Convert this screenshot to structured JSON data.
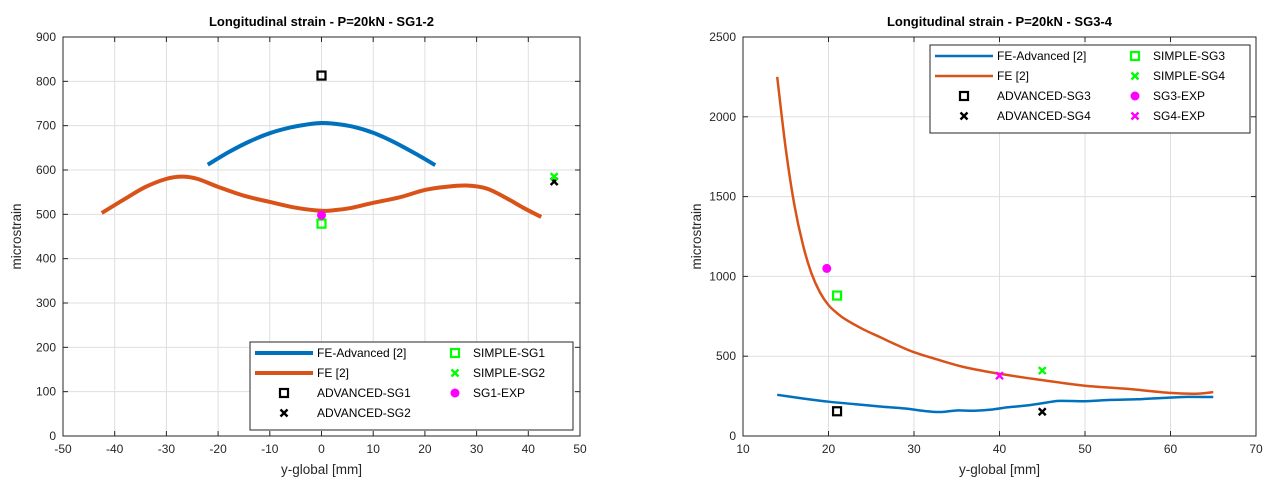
{
  "chart_data": [
    {
      "type": "line",
      "title": "Longitudinal strain - P=20kN - SG1-2",
      "xlabel": "y-global [mm]",
      "ylabel": "microstrain",
      "xlim": [
        -50,
        50
      ],
      "ylim": [
        0,
        900
      ],
      "xticks": [
        "-50",
        "-40",
        "-30",
        "-20",
        "-10",
        "0",
        "10",
        "20",
        "30",
        "40",
        "50"
      ],
      "yticks": [
        "0",
        "100",
        "200",
        "300",
        "400",
        "500",
        "600",
        "700",
        "800",
        "900"
      ],
      "grid": true,
      "legend_position": "bottom-right",
      "series": [
        {
          "name": "FE-Advanced [2]",
          "kind": "line",
          "color": "#0072BD",
          "width": 4,
          "x": [
            -22,
            -18,
            -14,
            -10,
            -6,
            -2,
            0,
            2,
            6,
            10,
            14,
            18,
            22
          ],
          "y": [
            612,
            640,
            664,
            683,
            696,
            704,
            706,
            705,
            698,
            684,
            663,
            638,
            611
          ]
        },
        {
          "name": "FE [2]",
          "kind": "line",
          "color": "#D95319",
          "width": 4,
          "x": [
            -42.5,
            -38,
            -34,
            -30,
            -27,
            -24,
            -20,
            -15,
            -10,
            -5,
            0,
            3,
            6,
            10,
            15,
            20,
            24,
            28,
            32,
            36,
            39,
            42.5
          ],
          "y": [
            503,
            535,
            562,
            580,
            585,
            580,
            562,
            542,
            528,
            515,
            508,
            510,
            515,
            526,
            538,
            555,
            562,
            565,
            558,
            535,
            515,
            494
          ]
        },
        {
          "name": "ADVANCED-SG1",
          "kind": "marker",
          "marker": "square",
          "color": "#000000",
          "x": [
            0
          ],
          "y": [
            813
          ]
        },
        {
          "name": "ADVANCED-SG2",
          "kind": "marker",
          "marker": "x",
          "color": "#000000",
          "x": [
            45
          ],
          "y": [
            574
          ]
        },
        {
          "name": "SIMPLE-SG1",
          "kind": "marker",
          "marker": "square",
          "color": "#00FF00",
          "x": [
            0
          ],
          "y": [
            479
          ]
        },
        {
          "name": "SIMPLE-SG2",
          "kind": "marker",
          "marker": "x",
          "color": "#00FF00",
          "x": [
            45
          ],
          "y": [
            585
          ]
        },
        {
          "name": "SG1-EXP",
          "kind": "marker",
          "marker": "circle",
          "color": "#FF00FF",
          "x": [
            0
          ],
          "y": [
            498
          ]
        }
      ]
    },
    {
      "type": "line",
      "title": "Longitudinal strain - P=20kN - SG3-4",
      "xlabel": "y-global [mm]",
      "ylabel": "microstrain",
      "xlim": [
        10,
        70
      ],
      "ylim": [
        0,
        2500
      ],
      "xticks": [
        "10",
        "20",
        "30",
        "40",
        "50",
        "60",
        "70"
      ],
      "yticks": [
        "0",
        "500",
        "1000",
        "1500",
        "2000",
        "2500"
      ],
      "grid": true,
      "legend_position": "top-right",
      "series": [
        {
          "name": "FE-Advanced [2]",
          "kind": "line",
          "color": "#0072BD",
          "width": 2.5,
          "x": [
            14,
            17,
            20,
            23,
            26,
            29,
            31,
            33,
            35,
            37,
            39,
            41,
            43,
            45,
            47,
            50,
            53,
            56,
            59,
            62,
            65
          ],
          "y": [
            258,
            235,
            215,
            200,
            185,
            172,
            158,
            150,
            160,
            158,
            165,
            180,
            190,
            205,
            220,
            218,
            226,
            230,
            238,
            245,
            244
          ]
        },
        {
          "name": "FE [2]",
          "kind": "line",
          "color": "#D95319",
          "width": 2.5,
          "x": [
            14,
            15,
            16,
            17,
            18,
            19,
            20,
            21,
            22,
            24,
            26,
            28,
            30,
            33,
            36,
            40,
            45,
            50,
            55,
            60,
            63,
            65
          ],
          "y": [
            2250,
            1800,
            1450,
            1200,
            1020,
            900,
            820,
            770,
            730,
            670,
            620,
            570,
            525,
            475,
            430,
            390,
            350,
            315,
            295,
            270,
            265,
            275
          ]
        },
        {
          "name": "ADVANCED-SG3",
          "kind": "marker",
          "marker": "square",
          "color": "#000000",
          "x": [
            21
          ],
          "y": [
            155
          ]
        },
        {
          "name": "ADVANCED-SG4",
          "kind": "marker",
          "marker": "x",
          "color": "#000000",
          "x": [
            45
          ],
          "y": [
            152
          ]
        },
        {
          "name": "SIMPLE-SG3",
          "kind": "marker",
          "marker": "square",
          "color": "#00FF00",
          "x": [
            21
          ],
          "y": [
            880
          ]
        },
        {
          "name": "SIMPLE-SG4",
          "kind": "marker",
          "marker": "x",
          "color": "#00FF00",
          "x": [
            45
          ],
          "y": [
            410
          ]
        },
        {
          "name": "SG3-EXP",
          "kind": "marker",
          "marker": "circle",
          "color": "#FF00FF",
          "x": [
            19.8
          ],
          "y": [
            1050
          ]
        },
        {
          "name": "SG4-EXP",
          "kind": "marker",
          "marker": "x",
          "color": "#FF00FF",
          "x": [
            40
          ],
          "y": [
            378
          ]
        }
      ]
    }
  ]
}
